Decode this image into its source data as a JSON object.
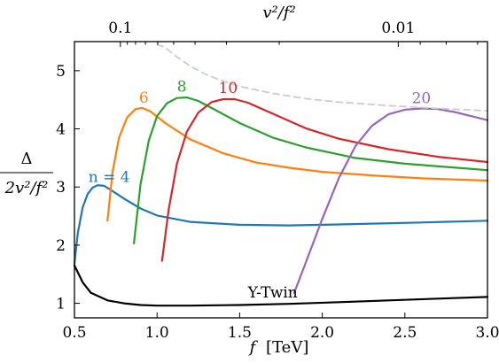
{
  "chart_data": {
    "type": "line",
    "xlabel_var": "f",
    "xlabel_unit": "[TeV]",
    "top_xlabel": "v²/f²",
    "ylabel_num": "Δ",
    "ylabel_den": "2v²/f²",
    "xlim": [
      0.5,
      3.0
    ],
    "ylim": [
      0.75,
      5.5
    ],
    "x_ticks": [
      0.5,
      1.0,
      1.5,
      2.0,
      2.5,
      3.0
    ],
    "x_tick_labels": [
      "0.5",
      "1.0",
      "1.5",
      "2.0",
      "2.5",
      "3.0"
    ],
    "y_ticks": [
      1,
      2,
      3,
      4,
      5
    ],
    "y_tick_labels": [
      "1",
      "2",
      "3",
      "4",
      "5"
    ],
    "top_major_ticks": [
      0.1,
      0.01
    ],
    "top_major_tick_labels": [
      "0.1",
      "0.01"
    ],
    "top_minor_ticks": [
      0.09,
      0.08,
      0.07,
      0.06,
      0.05,
      0.04,
      0.03,
      0.02,
      0.009,
      0.008,
      0.007
    ],
    "grid": false,
    "series": [
      {
        "name": "n = 4",
        "color": "#1f77b4",
        "dashed": false,
        "points": [
          [
            0.5,
            1.68
          ],
          [
            0.52,
            2.2
          ],
          [
            0.55,
            2.65
          ],
          [
            0.58,
            2.88
          ],
          [
            0.61,
            2.99
          ],
          [
            0.64,
            3.03
          ],
          [
            0.68,
            3.02
          ],
          [
            0.72,
            2.95
          ],
          [
            0.8,
            2.8
          ],
          [
            0.9,
            2.63
          ],
          [
            1.0,
            2.51
          ],
          [
            1.2,
            2.4
          ],
          [
            1.5,
            2.35
          ],
          [
            1.8,
            2.34
          ],
          [
            2.0,
            2.35
          ],
          [
            2.3,
            2.37
          ],
          [
            2.6,
            2.39
          ],
          [
            3.0,
            2.42
          ]
        ]
      },
      {
        "name": "6",
        "color": "#ff7f0e",
        "dashed": false,
        "points": [
          [
            0.7,
            2.42
          ],
          [
            0.73,
            3.25
          ],
          [
            0.77,
            3.85
          ],
          [
            0.82,
            4.2
          ],
          [
            0.87,
            4.34
          ],
          [
            0.91,
            4.36
          ],
          [
            0.96,
            4.3
          ],
          [
            1.05,
            4.1
          ],
          [
            1.2,
            3.82
          ],
          [
            1.4,
            3.58
          ],
          [
            1.6,
            3.42
          ],
          [
            1.8,
            3.33
          ],
          [
            2.0,
            3.26
          ],
          [
            2.3,
            3.2
          ],
          [
            2.6,
            3.15
          ],
          [
            3.0,
            3.11
          ]
        ]
      },
      {
        "name": "8",
        "color": "#2ca02c",
        "dashed": false,
        "points": [
          [
            0.86,
            2.03
          ],
          [
            0.9,
            3.05
          ],
          [
            0.95,
            3.8
          ],
          [
            1.0,
            4.22
          ],
          [
            1.06,
            4.44
          ],
          [
            1.12,
            4.53
          ],
          [
            1.18,
            4.54
          ],
          [
            1.25,
            4.48
          ],
          [
            1.35,
            4.33
          ],
          [
            1.5,
            4.1
          ],
          [
            1.7,
            3.85
          ],
          [
            1.9,
            3.68
          ],
          [
            2.2,
            3.5
          ],
          [
            2.5,
            3.4
          ],
          [
            3.0,
            3.29
          ]
        ]
      },
      {
        "name": "10",
        "color": "#d62728",
        "dashed": false,
        "points": [
          [
            1.03,
            1.73
          ],
          [
            1.07,
            2.6
          ],
          [
            1.12,
            3.4
          ],
          [
            1.18,
            3.95
          ],
          [
            1.25,
            4.28
          ],
          [
            1.33,
            4.46
          ],
          [
            1.4,
            4.51
          ],
          [
            1.47,
            4.51
          ],
          [
            1.55,
            4.45
          ],
          [
            1.7,
            4.26
          ],
          [
            1.9,
            4.01
          ],
          [
            2.1,
            3.83
          ],
          [
            2.4,
            3.65
          ],
          [
            2.7,
            3.52
          ],
          [
            3.0,
            3.43
          ]
        ]
      },
      {
        "name": "20",
        "color": "#9467bd",
        "dashed": false,
        "points": [
          [
            1.83,
            1.18
          ],
          [
            1.9,
            1.7
          ],
          [
            2.0,
            2.45
          ],
          [
            2.1,
            3.15
          ],
          [
            2.2,
            3.7
          ],
          [
            2.3,
            4.05
          ],
          [
            2.4,
            4.25
          ],
          [
            2.5,
            4.33
          ],
          [
            2.6,
            4.35
          ],
          [
            2.7,
            4.34
          ],
          [
            2.8,
            4.29
          ],
          [
            2.9,
            4.22
          ],
          [
            3.0,
            4.15
          ]
        ]
      },
      {
        "name": "Y-Twin",
        "color": "#000000",
        "dashed": false,
        "points": [
          [
            0.5,
            1.65
          ],
          [
            0.55,
            1.36
          ],
          [
            0.6,
            1.18
          ],
          [
            0.7,
            1.05
          ],
          [
            0.8,
            1.0
          ],
          [
            0.9,
            0.97
          ],
          [
            1.0,
            0.96
          ],
          [
            1.2,
            0.96
          ],
          [
            1.5,
            0.97
          ],
          [
            1.8,
            0.99
          ],
          [
            2.1,
            1.02
          ],
          [
            2.4,
            1.05
          ],
          [
            2.7,
            1.08
          ],
          [
            3.0,
            1.11
          ]
        ]
      },
      {
        "name": "",
        "color": "#cccccc",
        "dashed": true,
        "points": [
          [
            1.0,
            5.45
          ],
          [
            1.05,
            5.4
          ],
          [
            1.1,
            5.28
          ],
          [
            1.2,
            5.08
          ],
          [
            1.3,
            4.93
          ],
          [
            1.4,
            4.82
          ],
          [
            1.5,
            4.73
          ],
          [
            1.7,
            4.61
          ],
          [
            1.9,
            4.52
          ],
          [
            2.1,
            4.46
          ],
          [
            2.4,
            4.4
          ],
          [
            2.7,
            4.35
          ],
          [
            3.0,
            4.31
          ]
        ]
      }
    ],
    "annotations": [
      {
        "text": "n = 4",
        "color": "#1f77b4",
        "x": 0.71,
        "y": 3.09
      },
      {
        "text": "6",
        "color": "#ff7f0e",
        "x": 0.92,
        "y": 4.45
      },
      {
        "text": "8",
        "color": "#2ca02c",
        "x": 1.15,
        "y": 4.64
      },
      {
        "text": "10",
        "color": "#d62728",
        "x": 1.43,
        "y": 4.62
      },
      {
        "text": "20",
        "color": "#9467bd",
        "x": 2.6,
        "y": 4.44
      },
      {
        "text": "Y-Twin",
        "color": "#000000",
        "x": 1.7,
        "y": 1.1
      }
    ]
  }
}
